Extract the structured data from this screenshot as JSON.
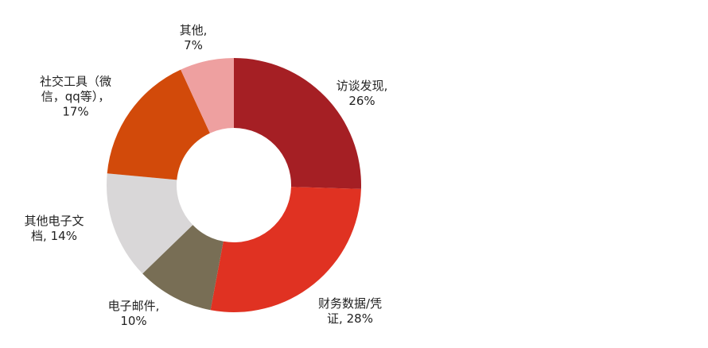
{
  "chart_data": {
    "type": "donut",
    "categories": [
      "访谈发现,",
      "财务数据/凭证,",
      "电子邮件,",
      "其他电子文档,",
      "社交工具（微信，qq等），",
      "其他,"
    ],
    "values": [
      26,
      28,
      10,
      14,
      17,
      7
    ],
    "value_labels": [
      "26%",
      "28%",
      "10%",
      "14%",
      "17%",
      "7%"
    ],
    "colors": [
      "#a51f24",
      "#e03222",
      "#786e55",
      "#d9d7d8",
      "#d24a0a",
      "#eea0a0"
    ]
  }
}
